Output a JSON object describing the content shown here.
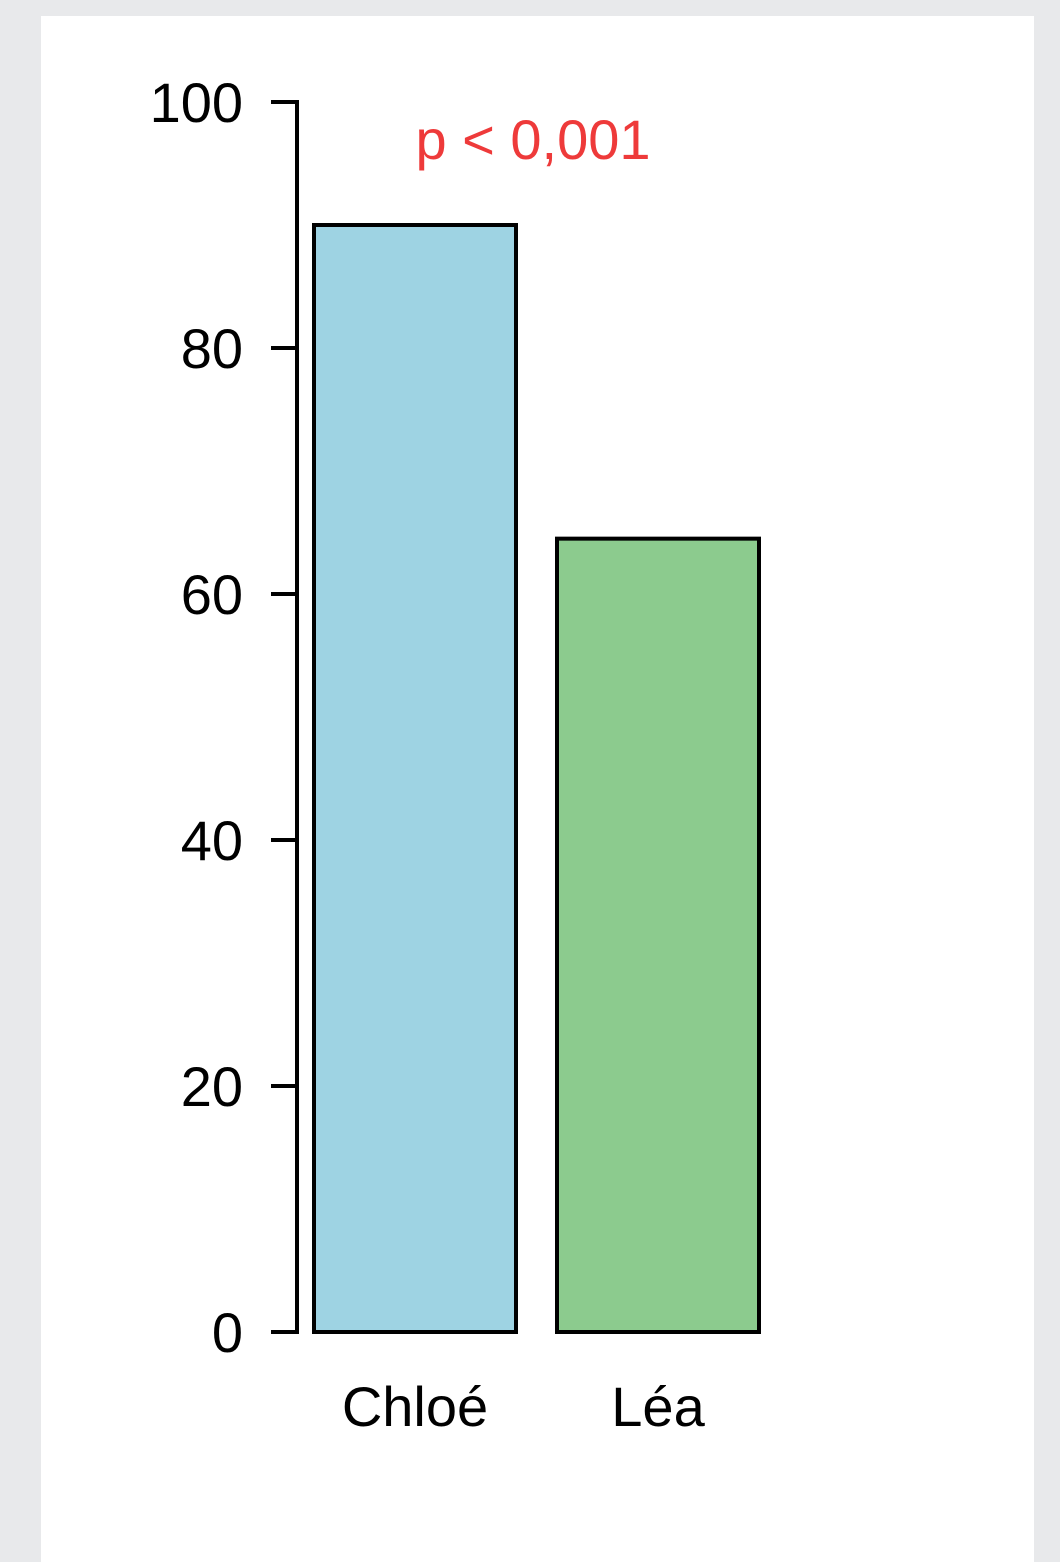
{
  "chart_data": {
    "type": "bar",
    "categories": [
      "Chloé",
      "Léa"
    ],
    "values": [
      90,
      64.5
    ],
    "bar_colors": [
      "#9ed3e3",
      "#8ccb8e"
    ],
    "bar_outline_color": "#000000",
    "ylim": [
      0,
      100
    ],
    "yticks": [
      0,
      20,
      40,
      60,
      80,
      100
    ],
    "ytick_labels": [
      "0",
      "20",
      "40",
      "60",
      "80",
      "100"
    ],
    "title": "",
    "xlabel": "",
    "ylabel": "",
    "grid": false,
    "annotation": {
      "text": "p < 0,001",
      "color": "#ee3a3a"
    }
  }
}
